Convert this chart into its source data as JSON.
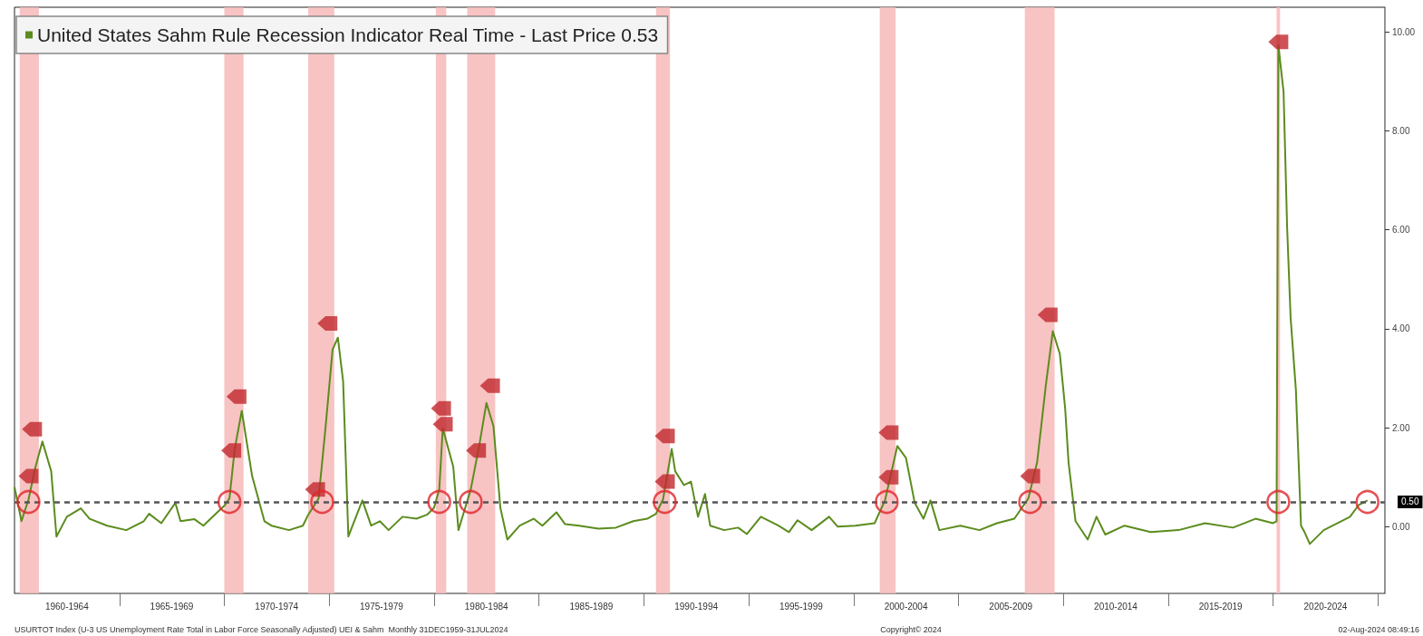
{
  "chart_data": {
    "type": "line",
    "marker": "none",
    "line_style": "solid",
    "legend": "top left",
    "xlim": [
      "1960-01",
      "2025-05"
    ],
    "ylim": [
      -1.35,
      10.5
    ],
    "xticks": [
      {
        "value": "1962-07",
        "label": "1960-1964"
      },
      {
        "value": "1965-01",
        "label": null
      },
      {
        "value": "1967-07",
        "label": "1965-1969"
      },
      {
        "value": "1970-01",
        "label": null
      },
      {
        "value": "1972-07",
        "label": "1970-1974"
      },
      {
        "value": "1975-01",
        "label": null
      },
      {
        "value": "1977-07",
        "label": "1975-1979"
      },
      {
        "value": "1980-01",
        "label": null
      },
      {
        "value": "1982-07",
        "label": "1980-1984"
      },
      {
        "value": "1985-01",
        "label": null
      },
      {
        "value": "1987-07",
        "label": "1985-1989"
      },
      {
        "value": "1990-01",
        "label": null
      },
      {
        "value": "1992-07",
        "label": "1990-1994"
      },
      {
        "value": "1995-01",
        "label": null
      },
      {
        "value": "1997-07",
        "label": "1995-1999"
      },
      {
        "value": "2000-01",
        "label": null
      },
      {
        "value": "2002-07",
        "label": "2000-2004"
      },
      {
        "value": "2005-01",
        "label": null
      },
      {
        "value": "2007-07",
        "label": "2005-2009"
      },
      {
        "value": "2010-01",
        "label": null
      },
      {
        "value": "2012-07",
        "label": "2010-2014"
      },
      {
        "value": "2015-01",
        "label": null
      },
      {
        "value": "2017-07",
        "label": "2015-2019"
      },
      {
        "value": "2020-01",
        "label": null
      },
      {
        "value": "2022-07",
        "label": "2020-2024"
      },
      {
        "value": "2025-01",
        "label": null
      }
    ],
    "yticks": [
      {
        "value": 0,
        "label": "0.00"
      },
      {
        "value": 2,
        "label": "2.00"
      },
      {
        "value": 4,
        "label": "4.00"
      },
      {
        "value": 6,
        "label": "6.00"
      },
      {
        "value": 8,
        "label": "8.00"
      },
      {
        "value": 10,
        "label": "10.00"
      }
    ],
    "series": [
      {
        "name": "United States Sahm Rule Recession Indicator Real Time - Last Price 0.53",
        "color": "#5b8c1e",
        "x": [
          "1960-01",
          "1960-05",
          "1960-09",
          "1961-01",
          "1961-05",
          "1961-10",
          "1962-01",
          "1962-07",
          "1963-03",
          "1963-08",
          "1964-06",
          "1965-05",
          "1966-03",
          "1966-06",
          "1967-01",
          "1967-09",
          "1967-12",
          "1968-08",
          "1969-01",
          "1969-09",
          "1970-01",
          "1970-04",
          "1970-07",
          "1970-11",
          "1971-05",
          "1971-12",
          "1972-04",
          "1973-02",
          "1973-10",
          "1974-01",
          "1974-07",
          "1974-11",
          "1975-03",
          "1975-06",
          "1975-09",
          "1975-12",
          "1976-08",
          "1977-01",
          "1977-06",
          "1977-11",
          "1978-07",
          "1979-03",
          "1979-09",
          "1980-01",
          "1980-04",
          "1980-06",
          "1980-12",
          "1981-03",
          "1981-10",
          "1982-03",
          "1982-07",
          "1982-11",
          "1983-03",
          "1983-07",
          "1984-02",
          "1984-10",
          "1985-03",
          "1985-11",
          "1986-04",
          "1986-12",
          "1987-11",
          "1988-09",
          "1989-07",
          "1990-03",
          "1990-08",
          "1990-12",
          "1991-05",
          "1991-07",
          "1991-12",
          "1992-04",
          "1992-08",
          "1992-12",
          "1993-03",
          "1993-11",
          "1994-07",
          "1994-12",
          "1995-08",
          "1996-06",
          "1996-12",
          "1997-05",
          "1998-01",
          "1998-11",
          "1999-04",
          "2000-02",
          "2001-01",
          "2001-07",
          "2002-02",
          "2002-07",
          "2002-12",
          "2003-05",
          "2003-09",
          "2004-02",
          "2005-02",
          "2006-01",
          "2006-11",
          "2007-09",
          "2008-05",
          "2008-10",
          "2009-03",
          "2009-07",
          "2009-11",
          "2010-02",
          "2010-04",
          "2010-08",
          "2011-03",
          "2011-08",
          "2012-01",
          "2012-12",
          "2014-03",
          "2015-07",
          "2016-10",
          "2018-02",
          "2019-03",
          "2020-01",
          "2020-03",
          "2020-04",
          "2020-07",
          "2020-09",
          "2020-11",
          "2021-02",
          "2021-05",
          "2021-07",
          "2021-10",
          "2022-06",
          "2023-04",
          "2023-09",
          "2024-02",
          "2024-07"
        ],
        "values": [
          0.8,
          0.11,
          0.55,
          1.21,
          1.72,
          1.12,
          -0.2,
          0.2,
          0.37,
          0.16,
          0.02,
          -0.07,
          0.11,
          0.26,
          0.07,
          0.48,
          0.11,
          0.15,
          0.02,
          0.29,
          0.42,
          0.57,
          1.57,
          2.34,
          1.02,
          0.11,
          0.02,
          -0.07,
          0.02,
          0.24,
          0.57,
          2.03,
          3.58,
          3.82,
          2.94,
          -0.2,
          0.53,
          0.02,
          0.11,
          -0.07,
          0.2,
          0.16,
          0.24,
          0.38,
          0.75,
          1.99,
          1.21,
          -0.07,
          0.75,
          1.66,
          2.5,
          2.03,
          0.38,
          -0.26,
          0.02,
          0.16,
          0.02,
          0.29,
          0.05,
          0.02,
          -0.04,
          -0.02,
          0.11,
          0.16,
          0.26,
          0.55,
          1.57,
          1.12,
          0.84,
          0.91,
          0.2,
          0.66,
          0.02,
          -0.07,
          -0.02,
          -0.15,
          0.2,
          0.02,
          -0.11,
          0.13,
          -0.07,
          0.2,
          0.0,
          0.02,
          0.07,
          0.53,
          1.63,
          1.39,
          0.48,
          0.16,
          0.53,
          -0.07,
          0.02,
          -0.07,
          0.07,
          0.16,
          0.57,
          1.3,
          2.85,
          3.95,
          3.49,
          2.39,
          1.3,
          0.11,
          -0.26,
          0.2,
          -0.16,
          0.02,
          -0.11,
          -0.07,
          0.07,
          -0.02,
          0.16,
          0.07,
          0.11,
          9.74,
          8.79,
          6.05,
          4.22,
          2.76,
          0.02,
          -0.11,
          -0.35,
          -0.07,
          0.11,
          0.2,
          0.44,
          0.53
        ]
      },
      {
        "type": "scatter",
        "marker": "circle",
        "color": "#e0262a",
        "x": [
          "1960-09",
          "1970-04",
          "1974-09",
          "1980-04",
          "1981-10",
          "1991-01",
          "2001-08",
          "2008-06",
          "2020-04",
          "2024-07"
        ],
        "values": [
          0.5,
          0.5,
          0.5,
          0.5,
          0.5,
          0.5,
          0.5,
          0.5,
          0.5,
          0.5
        ]
      },
      {
        "type": "scatter",
        "marker": "diamond",
        "color": "#c0282d",
        "x": [
          "1960-09",
          "1960-11",
          "1970-05",
          "1970-08",
          "1974-05",
          "1974-12",
          "1980-05",
          "1980-06",
          "1982-01",
          "1982-09",
          "1991-01",
          "1991-01",
          "2001-09",
          "2001-09",
          "2008-06",
          "2009-04",
          "2020-04"
        ],
        "values": [
          1.02,
          1.97,
          1.54,
          2.63,
          0.75,
          4.11,
          2.39,
          2.07,
          1.54,
          2.85,
          0.91,
          1.83,
          1.0,
          1.9,
          1.02,
          4.28,
          9.8
        ]
      }
    ],
    "ref_lines": [
      {
        "axis": "y",
        "value": 0.5,
        "label": "0.50",
        "line_style": "dashed",
        "color": "#555555"
      }
    ],
    "bands": [
      {
        "axis": "x",
        "from": "1960-04",
        "to": "1961-03",
        "color": "#f7b9b9"
      },
      {
        "axis": "x",
        "from": "1970-01",
        "to": "1970-12",
        "color": "#f7b9b9"
      },
      {
        "axis": "x",
        "from": "1974-01",
        "to": "1975-04",
        "color": "#f7b9b9"
      },
      {
        "axis": "x",
        "from": "1980-02",
        "to": "1980-08",
        "color": "#f7b9b9"
      },
      {
        "axis": "x",
        "from": "1981-08",
        "to": "1982-12",
        "color": "#f7b9b9"
      },
      {
        "axis": "x",
        "from": "1990-08",
        "to": "1991-04",
        "color": "#f7b9b9"
      },
      {
        "axis": "x",
        "from": "2001-04",
        "to": "2002-01",
        "color": "#f7b9b9"
      },
      {
        "axis": "x",
        "from": "2008-03",
        "to": "2009-08",
        "color": "#f7b9b9"
      },
      {
        "axis": "x",
        "from": "2020-03",
        "to": "2020-05",
        "color": "#f7b9b9"
      }
    ],
    "annotations": [
      "USURTOT Index (U-3 US Unemployment Rate Total in Labor Force Seasonally Adjusted) UEI & Sahm  Monthly 31DEC1959-31JUL2024",
      "Copyright© 2024",
      "02-Aug-2024 08:49:16"
    ]
  }
}
